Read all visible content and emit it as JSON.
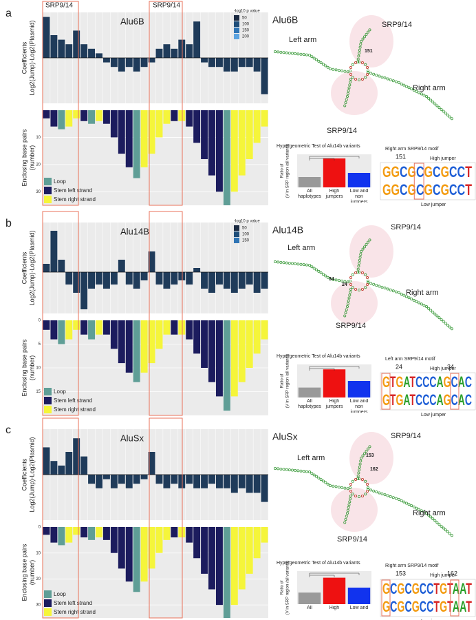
{
  "top_labels": [
    "SRP9/14",
    "SRP9/14"
  ],
  "panels": [
    {
      "label": "a",
      "coefficients": {
        "type": "bar",
        "title": "Alu6B",
        "y_label": [
          "Coefficients",
          "Log2(Jump)-Log2(Plasmid)"
        ],
        "color": "#1f3b5a",
        "ylim": [
          -1,
          1
        ],
        "values": [
          0.9,
          0.5,
          0.4,
          0.3,
          0.6,
          0.3,
          0.2,
          0.1,
          -0.1,
          -0.2,
          -0.3,
          -0.2,
          -0.3,
          -0.2,
          -0.1,
          0.2,
          0.3,
          0.2,
          0.4,
          0.3,
          0.8,
          -0.1,
          -0.2,
          -0.2,
          -0.3,
          -0.3,
          -0.2,
          -0.2,
          -0.3,
          -0.8
        ],
        "legend_title": "-log10 p value",
        "legend_values": [
          50,
          100,
          150,
          200
        ],
        "legend_colors": [
          "#1b2a41",
          "#1f4e79",
          "#2f75b5",
          "#5ba3e0"
        ]
      },
      "base_pairs": {
        "type": "bar",
        "y_label": [
          "Enclosing base pairs",
          "(number)"
        ],
        "ylim": [
          0,
          35
        ],
        "yticks": [
          10,
          20,
          30
        ],
        "series": [
          {
            "name": "Loop",
            "color": "#5f9e96",
            "values": [
              null,
              null,
              7,
              null,
              null,
              null,
              5,
              null,
              null,
              null,
              null,
              null,
              25,
              null,
              null,
              null,
              null,
              null,
              null,
              null,
              null,
              null,
              null,
              null,
              35,
              null,
              null,
              null,
              null,
              null
            ]
          },
          {
            "name": "Stem left strand",
            "color": "#1c1c5e",
            "values": [
              3,
              6,
              null,
              null,
              null,
              4,
              null,
              null,
              5,
              10,
              16,
              21,
              null,
              null,
              null,
              null,
              null,
              4,
              null,
              6,
              12,
              18,
              24,
              30,
              null,
              null,
              null,
              null,
              null,
              null
            ]
          },
          {
            "name": "Stem right strand",
            "color": "#f5f53a",
            "values": [
              null,
              null,
              null,
              6,
              3,
              null,
              null,
              4,
              null,
              null,
              null,
              null,
              null,
              21,
              16,
              10,
              5,
              null,
              4,
              null,
              null,
              null,
              null,
              null,
              null,
              30,
              24,
              18,
              12,
              6
            ]
          }
        ]
      },
      "structure": {
        "title": "Alu6B",
        "labels": [
          "Left arm",
          "SRP9/14",
          "151",
          "Right arm",
          "SRP9/14"
        ]
      },
      "test": {
        "type": "bar",
        "title": "Hypergeometric Test of Alu14b variants",
        "y_label": [
          "Ratio of",
          "(V in SRP region /all variants)"
        ],
        "ylim": [
          0,
          0.8
        ],
        "categories": [
          "All haplotypes",
          "High jumpers",
          "Low and non jumpers"
        ],
        "values": [
          0.25,
          0.7,
          0.35
        ],
        "colors": [
          "#999999",
          "#ee1111",
          "#1133ee"
        ]
      },
      "motif": {
        "title": "Right arm SRP9/14 motif",
        "positions": [
          "151"
        ],
        "high_label": "High jumper",
        "low_label": "Low jumper",
        "sequences": [
          "GGCGCGCGCCT",
          "GGCGCGCGCCT"
        ]
      }
    },
    {
      "label": "b",
      "coefficients": {
        "type": "bar",
        "title": "Alu14B",
        "y_label": [
          "Coefficients",
          "Log2(Jump)-Log2(Plasmid)"
        ],
        "color": "#1f3b5a",
        "ylim": [
          -1,
          1.2
        ],
        "values": [
          0.2,
          1.0,
          0.3,
          -0.3,
          -0.5,
          -0.9,
          -0.4,
          -0.3,
          -0.4,
          -0.3,
          0.3,
          -0.3,
          -0.4,
          -0.2,
          0.5,
          -0.3,
          -0.4,
          -0.3,
          -0.2,
          -0.3,
          0.1,
          -0.4,
          -0.5,
          -0.3,
          -0.4,
          -0.5,
          -0.4,
          -0.3,
          -0.5,
          -0.4
        ],
        "legend_title": "-log10 p value",
        "legend_values": [
          50,
          100,
          150
        ],
        "legend_colors": [
          "#1b2a41",
          "#1f4e79",
          "#2f75b5"
        ]
      },
      "base_pairs": {
        "type": "bar",
        "y_label": [
          "Enclosing base pairs",
          "(number)"
        ],
        "ylim": [
          0,
          20
        ],
        "yticks": [
          0,
          5,
          10,
          15
        ],
        "series": [
          {
            "name": "Loop",
            "color": "#5f9e96",
            "values": [
              null,
              null,
              5,
              null,
              null,
              null,
              4,
              null,
              null,
              null,
              null,
              null,
              13,
              null,
              null,
              null,
              null,
              null,
              null,
              null,
              null,
              null,
              null,
              null,
              19,
              null,
              null,
              null,
              null,
              null
            ]
          },
          {
            "name": "Stem left strand",
            "color": "#1c1c5e",
            "values": [
              2,
              4,
              null,
              null,
              null,
              3,
              null,
              null,
              3,
              6,
              9,
              11,
              null,
              null,
              null,
              null,
              null,
              3,
              null,
              4,
              7,
              10,
              13,
              16,
              null,
              null,
              null,
              null,
              null,
              null
            ]
          },
          {
            "name": "Stem right strand",
            "color": "#f5f53a",
            "values": [
              null,
              null,
              null,
              4,
              2,
              null,
              null,
              3,
              null,
              null,
              null,
              null,
              null,
              11,
              9,
              6,
              3,
              null,
              3,
              null,
              null,
              null,
              null,
              null,
              null,
              16,
              13,
              10,
              7,
              4
            ]
          }
        ]
      },
      "structure": {
        "title": "Alu14B",
        "labels": [
          "Left arm",
          "SRP9/14",
          "34",
          "24",
          "Right arm",
          "SRP9/14"
        ]
      },
      "test": {
        "type": "bar",
        "title": "Hypergeometric Test of Alu14b variants",
        "y_label": [
          "Ratio of",
          "(V in SRP region /all variants)"
        ],
        "ylim": [
          0,
          1
        ],
        "categories": [
          "All haplotypes",
          "High jumpers",
          "Low and non jumpers"
        ],
        "values": [
          0.3,
          0.85,
          0.5
        ],
        "colors": [
          "#999999",
          "#ee1111",
          "#1133ee"
        ]
      },
      "motif": {
        "title": "Left arm SRP9/14 motif",
        "positions": [
          "24",
          "34"
        ],
        "high_label": "High jumper",
        "low_label": "Low jumper",
        "sequences": [
          "GTGATCCCAGCAC",
          "GTGATCCCAGCAC"
        ]
      }
    },
    {
      "label": "c",
      "coefficients": {
        "type": "bar",
        "title": "AluSx",
        "y_label": [
          "Coefficients",
          "Log2(Jump)-Log2(Plasmid)"
        ],
        "color": "#1f3b5a",
        "ylim": [
          -1,
          1
        ],
        "values": [
          0.6,
          0.3,
          0.2,
          0.5,
          0.8,
          0.4,
          -0.2,
          -0.3,
          -0.1,
          -0.3,
          -0.2,
          -0.3,
          -0.2,
          -0.1,
          0.5,
          -0.2,
          -0.3,
          -0.2,
          -0.3,
          -0.2,
          -0.3,
          -0.3,
          -0.2,
          -0.3,
          -0.3,
          -0.4,
          -0.3,
          -0.4,
          -0.4,
          -0.6
        ]
      },
      "base_pairs": {
        "type": "bar",
        "y_label": [
          "Enclosing base pairs",
          "(number)"
        ],
        "ylim": [
          0,
          35
        ],
        "yticks": [
          0,
          10,
          20,
          30
        ],
        "series": [
          {
            "name": "Loop",
            "color": "#5f9e96",
            "values": [
              null,
              null,
              7,
              null,
              null,
              null,
              5,
              null,
              null,
              null,
              null,
              null,
              25,
              null,
              null,
              null,
              null,
              null,
              null,
              null,
              null,
              null,
              null,
              null,
              35,
              null,
              null,
              null,
              null,
              null
            ]
          },
          {
            "name": "Stem left strand",
            "color": "#1c1c5e",
            "values": [
              3,
              6,
              null,
              null,
              null,
              4,
              null,
              null,
              5,
              10,
              16,
              21,
              null,
              null,
              null,
              null,
              null,
              4,
              null,
              6,
              12,
              18,
              24,
              30,
              null,
              null,
              null,
              null,
              null,
              null
            ]
          },
          {
            "name": "Stem right strand",
            "color": "#f5f53a",
            "values": [
              null,
              null,
              null,
              6,
              3,
              null,
              null,
              4,
              null,
              null,
              null,
              null,
              null,
              21,
              16,
              10,
              5,
              null,
              4,
              null,
              null,
              null,
              null,
              null,
              null,
              30,
              24,
              18,
              12,
              6
            ]
          }
        ]
      },
      "structure": {
        "title": "AluSx",
        "labels": [
          "Left arm",
          "SRP9/14",
          "153",
          "162",
          "Right arm",
          "SRP9/14"
        ]
      },
      "test": {
        "type": "bar",
        "title": "Hypergeometric Test of Alu14b variants",
        "y_label": [
          "Ratio of",
          "(V in SRP region /all variants)"
        ],
        "ylim": [
          0,
          1
        ],
        "categories": [
          "All",
          "High",
          "Low and"
        ],
        "values": [
          0.35,
          0.8,
          0.5
        ],
        "colors": [
          "#999999",
          "#ee1111",
          "#1133ee"
        ]
      },
      "motif": {
        "title": "Right arm SRP9/14 motif",
        "positions": [
          "153",
          "162"
        ],
        "high_label": "High jumper",
        "low_label": "Low jumper",
        "sequences": [
          "GCGCGCCTGTAAT",
          "GCGCGCCTGTAAT"
        ]
      }
    }
  ]
}
